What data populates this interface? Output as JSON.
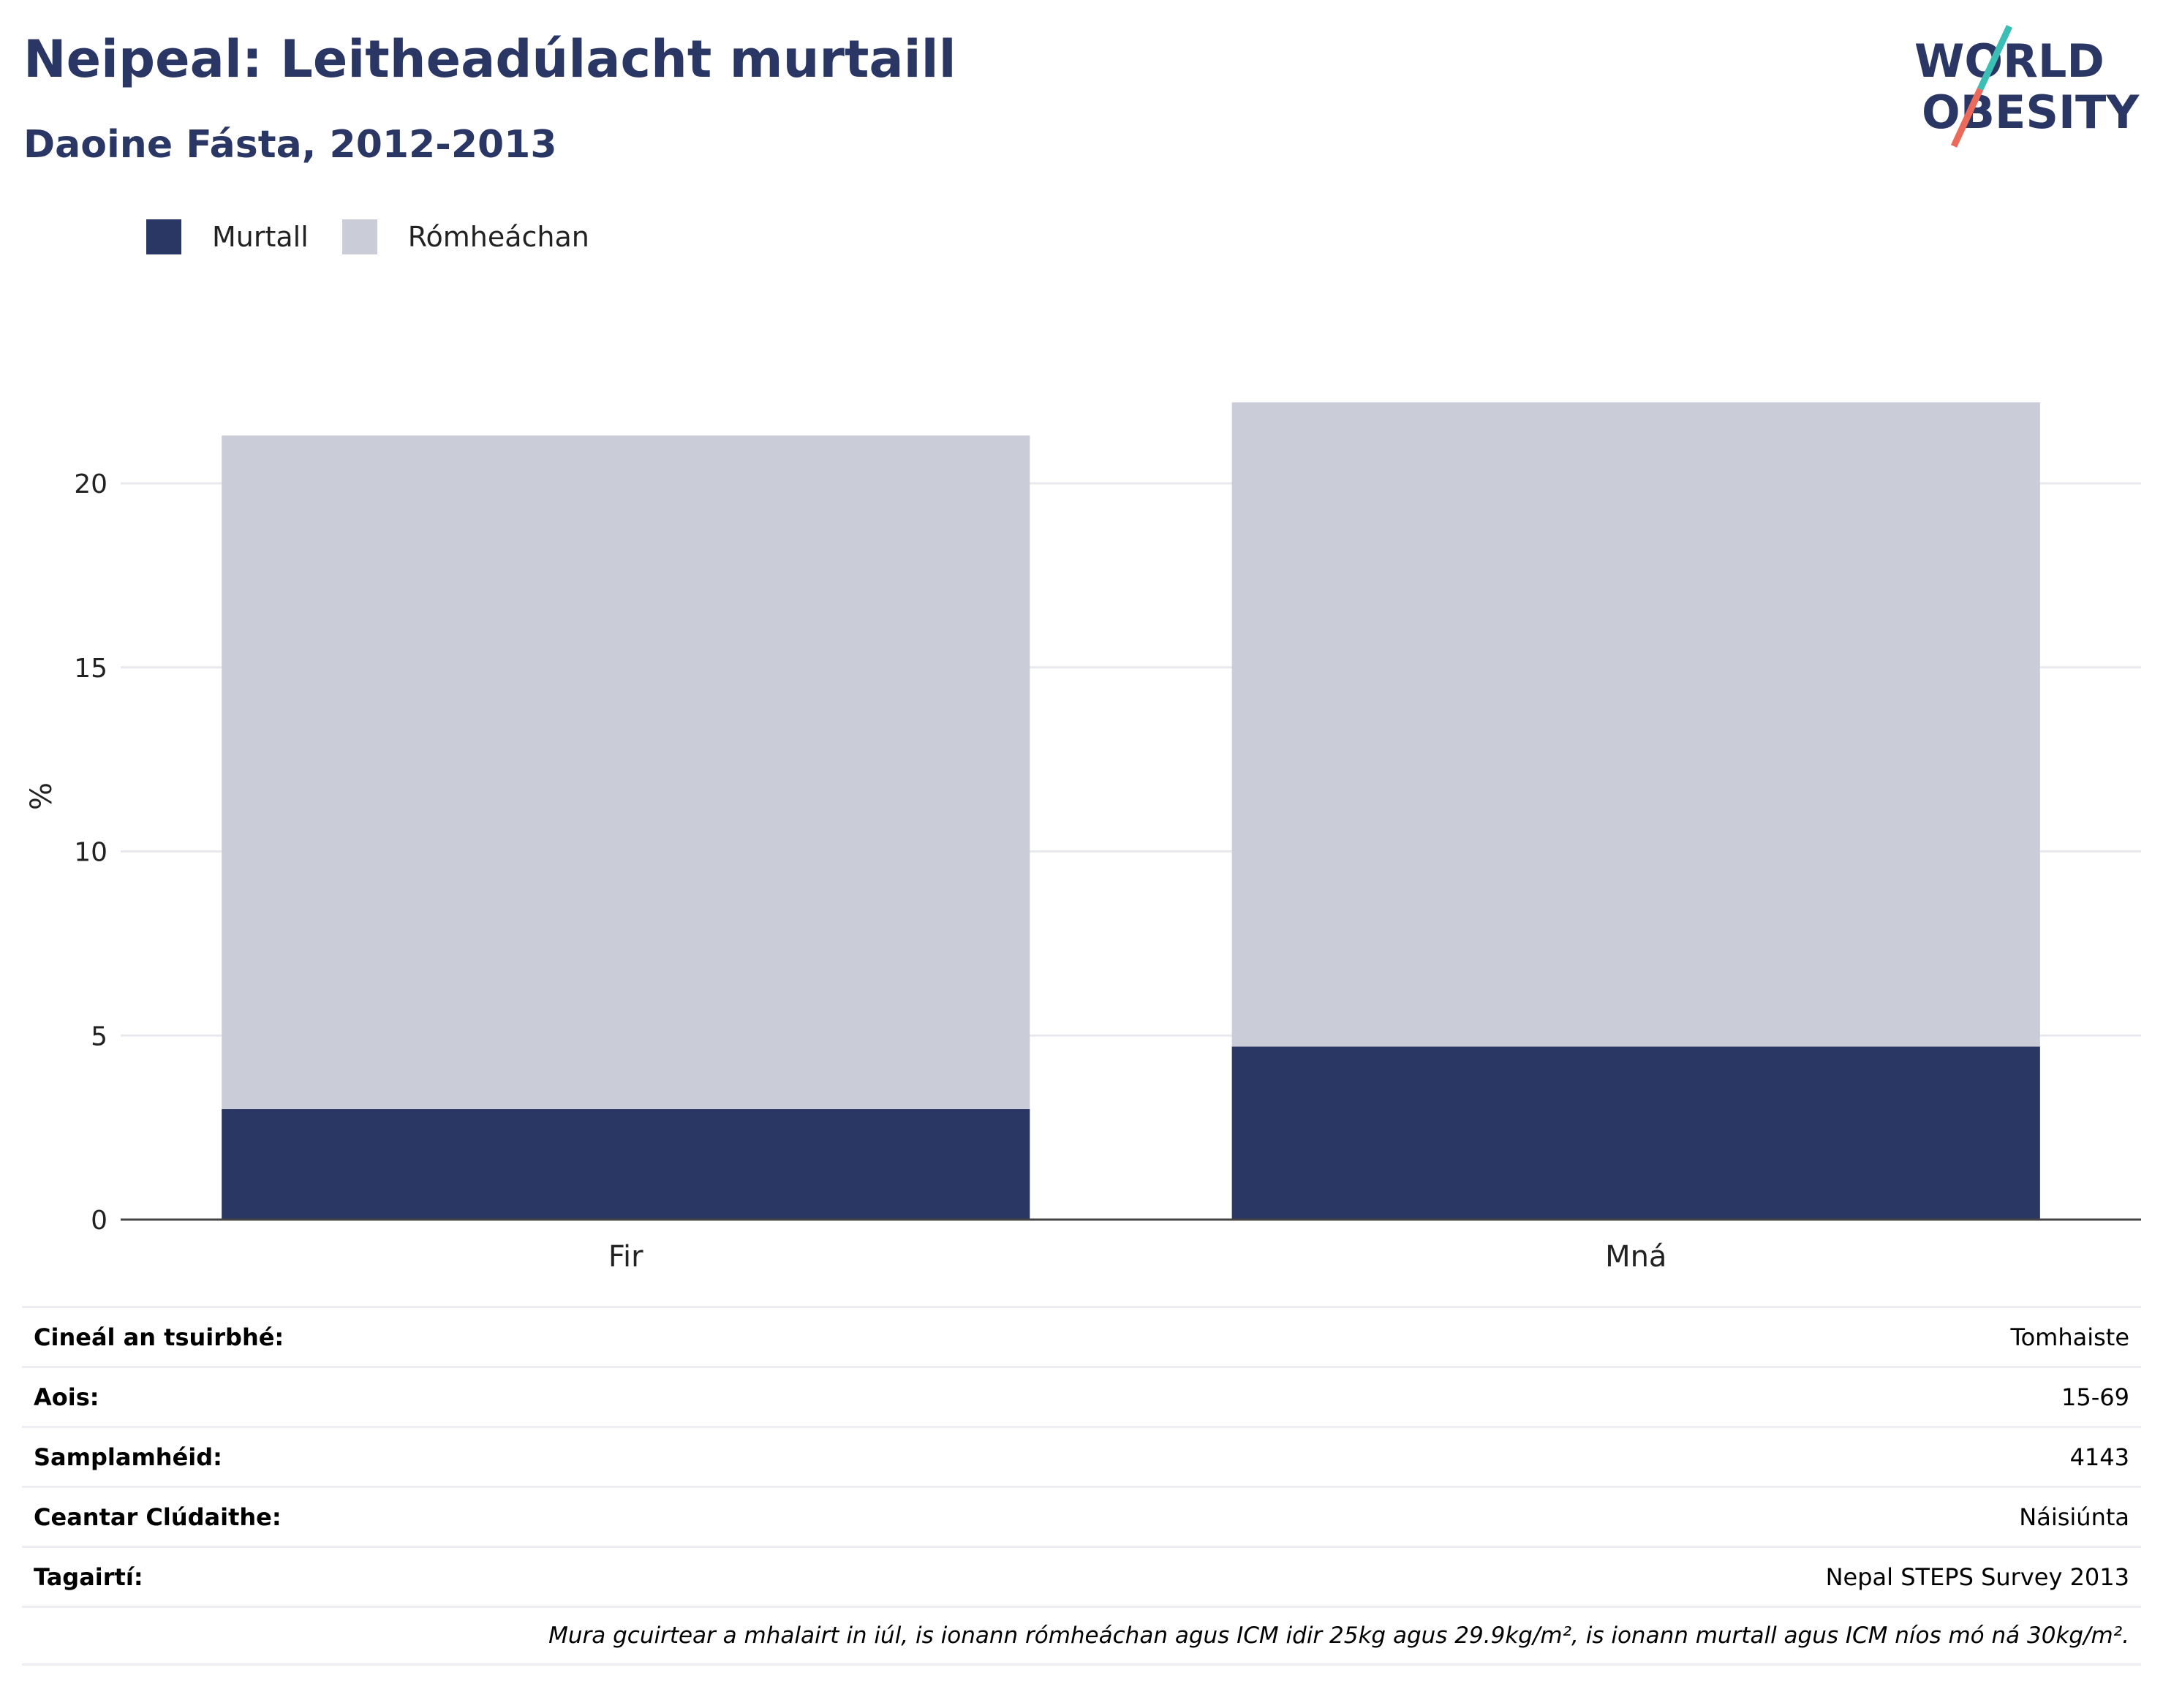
{
  "header": {
    "title": "Neipeal: Leitheadúlacht murtaill",
    "subtitle": "Daoine Fásta, 2012-2013"
  },
  "logo": {
    "line1": "WORLD",
    "line2": "OBESITY"
  },
  "legend": [
    {
      "label": "Murtall",
      "color": "#2a3664"
    },
    {
      "label": "Rómheáchan",
      "color": "#cacccf"
    }
  ],
  "chart_data": {
    "type": "bar",
    "stacked": true,
    "categories": [
      "Fir",
      "Mná"
    ],
    "series": [
      {
        "name": "Murtall",
        "values": [
          3.0,
          4.7
        ],
        "color": "#2a3664"
      },
      {
        "name": "Rómheáchan",
        "values": [
          18.3,
          17.5
        ],
        "color": "#cacdd8"
      }
    ],
    "ylabel": "%",
    "ylim": [
      0,
      23
    ],
    "yticks": [
      0,
      5,
      10,
      15,
      20
    ],
    "grid": true,
    "legend_position": "top-left"
  },
  "info_table": [
    {
      "label": "Cineál an tsuirbhé:",
      "value": "Tomhaiste"
    },
    {
      "label": "Aois:",
      "value": "15-69"
    },
    {
      "label": "Samplamhéid:",
      "value": "4143"
    },
    {
      "label": "Ceantar Clúdaithe:",
      "value": "Náisiúnta"
    },
    {
      "label": "Tagairtí:",
      "value": "Nepal STEPS Survey 2013"
    }
  ],
  "footnote": "Mura gcuirtear a mhalairt in iúl, is ionann rómheáchan agus ICM idir 25kg agus 29.9kg/m², is ionann murtall agus ICM níos mó ná 30kg/m²."
}
